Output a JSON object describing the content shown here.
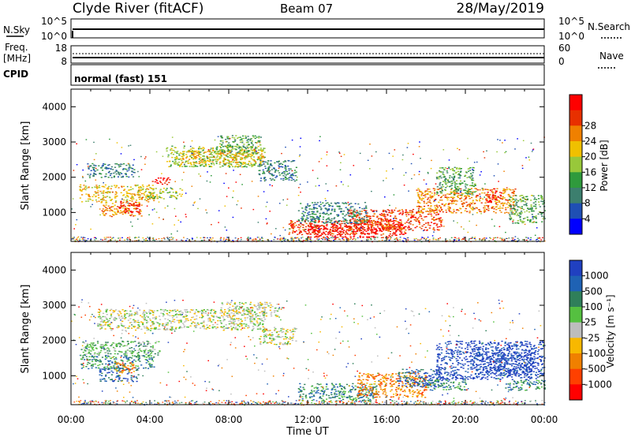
{
  "header": {
    "station": "Clyde River (fitACF)",
    "beam": "Beam 07",
    "date": "28/May/2019"
  },
  "top_panels": {
    "nsky": {
      "label": "N.Sky",
      "y_ticks": [
        "10^5",
        "10^0"
      ],
      "right_ticks": [
        "10^5",
        "10^0"
      ],
      "right_label": "N.Search"
    },
    "freq": {
      "label_line1": "Freq.",
      "label_line2": "[MHz]",
      "y_ticks": [
        "18",
        "8"
      ],
      "right_ticks": [
        "60",
        "0"
      ],
      "right_label": "Nave"
    },
    "cpid": {
      "label": "CPID",
      "mode_text": "normal (fast) 151"
    }
  },
  "chart_data": [
    {
      "type": "heatmap",
      "name": "power",
      "ylabel": "Slant Range [km]",
      "xlabel": "Time UT",
      "ylim": [
        180,
        4500
      ],
      "y_ticks": [
        1000,
        2000,
        3000,
        4000
      ],
      "x_ticks": [
        "00:00",
        "04:00",
        "08:00",
        "12:00",
        "16:00",
        "20:00",
        "00:00"
      ],
      "colorbar": {
        "label": "Power [dB]",
        "ticks": [
          "4",
          "8",
          "12",
          "16",
          "20",
          "24",
          "28"
        ],
        "colors": [
          "#0000ff",
          "#1f4fb4",
          "#3c7f6e",
          "#2f9a3c",
          "#98c83a",
          "#f0c000",
          "#f08000",
          "#e83000",
          "#ff0000"
        ]
      },
      "regions": [
        {
          "t0": 0.4,
          "t1": 4.2,
          "r0": 1300,
          "r1": 1800,
          "level": 5
        },
        {
          "t0": 1.5,
          "t1": 3.6,
          "r0": 900,
          "r1": 1300,
          "level": 6
        },
        {
          "t0": 2.4,
          "t1": 3.5,
          "r0": 1000,
          "r1": 1350,
          "level": 8
        },
        {
          "t0": 4.1,
          "t1": 5.0,
          "r0": 1800,
          "r1": 2000,
          "level": 8
        },
        {
          "t0": 3.8,
          "t1": 5.6,
          "r0": 1400,
          "r1": 1700,
          "level": 4
        },
        {
          "t0": 0.8,
          "t1": 3.2,
          "r0": 2000,
          "r1": 2400,
          "level": 2
        },
        {
          "t0": 4.8,
          "t1": 9.8,
          "r0": 2300,
          "r1": 2900,
          "level": 4
        },
        {
          "t0": 5.5,
          "t1": 9.8,
          "r0": 2400,
          "r1": 2800,
          "level": 5
        },
        {
          "t0": 7.5,
          "t1": 9.6,
          "r0": 2700,
          "r1": 3200,
          "level": 3
        },
        {
          "t0": 9.5,
          "t1": 11.4,
          "r0": 1900,
          "r1": 2500,
          "level": 2
        },
        {
          "t0": 11.0,
          "t1": 17.0,
          "r0": 380,
          "r1": 800,
          "level": 7
        },
        {
          "t0": 12.0,
          "t1": 16.8,
          "r0": 300,
          "r1": 700,
          "level": 8
        },
        {
          "t0": 14.0,
          "t1": 18.8,
          "r0": 500,
          "r1": 1100,
          "level": 7
        },
        {
          "t0": 11.5,
          "t1": 15.0,
          "r0": 700,
          "r1": 1300,
          "level": 2
        },
        {
          "t0": 17.5,
          "t1": 22.5,
          "r0": 1000,
          "r1": 1700,
          "level": 6
        },
        {
          "t0": 18.5,
          "t1": 20.5,
          "r0": 1500,
          "r1": 2300,
          "level": 3
        },
        {
          "t0": 21.0,
          "t1": 21.8,
          "r0": 1300,
          "r1": 1700,
          "level": 8
        },
        {
          "t0": 22.2,
          "t1": 24.0,
          "r0": 700,
          "r1": 1500,
          "level": 3
        }
      ]
    },
    {
      "type": "heatmap",
      "name": "velocity",
      "ylabel": "Slant Range [km]",
      "xlabel": "Time UT",
      "ylim": [
        180,
        4500
      ],
      "y_ticks": [
        1000,
        2000,
        3000,
        4000
      ],
      "x_ticks": [
        "00:00",
        "04:00",
        "08:00",
        "12:00",
        "16:00",
        "20:00",
        "00:00"
      ],
      "colorbar": {
        "label": "Velocity [m s⁻¹]",
        "ticks": [
          "1000",
          "500",
          "100",
          "25",
          "-25",
          "-100",
          "-500",
          "-1000"
        ],
        "colors": [
          "#2040c0",
          "#1f62b4",
          "#2f7f5a",
          "#55c040",
          "#bdbdbd",
          "#f8b800",
          "#f08000",
          "#ff4000",
          "#ff0000"
        ]
      },
      "regions": [
        {
          "t0": 1.3,
          "t1": 9.8,
          "r0": 2300,
          "r1": 2900,
          "level": 4
        },
        {
          "t0": 7.5,
          "t1": 10.5,
          "r0": 2700,
          "r1": 3100,
          "level": 4
        },
        {
          "t0": 9.5,
          "t1": 11.4,
          "r0": 1900,
          "r1": 2400,
          "level": 4
        },
        {
          "t0": 0.4,
          "t1": 4.2,
          "r0": 1200,
          "r1": 1600,
          "level": 2
        },
        {
          "t0": 1.4,
          "t1": 3.4,
          "r0": 850,
          "r1": 1250,
          "level": 1
        },
        {
          "t0": 2.2,
          "t1": 3.2,
          "r0": 1100,
          "r1": 1400,
          "level": 6
        },
        {
          "t0": 0.5,
          "t1": 4.5,
          "r0": 1600,
          "r1": 2000,
          "level": 3
        },
        {
          "t0": 11.5,
          "t1": 15.5,
          "r0": 300,
          "r1": 800,
          "level": 2
        },
        {
          "t0": 14.5,
          "t1": 18.0,
          "r0": 400,
          "r1": 1100,
          "level": 6
        },
        {
          "t0": 16.5,
          "t1": 18.8,
          "r0": 700,
          "r1": 1200,
          "level": 1
        },
        {
          "t0": 18.5,
          "t1": 24.0,
          "r0": 900,
          "r1": 2000,
          "level": 0
        },
        {
          "t0": 20.5,
          "t1": 23.5,
          "r0": 1000,
          "r1": 1700,
          "level": 0
        },
        {
          "t0": 18.0,
          "t1": 20.0,
          "r0": 600,
          "r1": 900,
          "level": 2
        },
        {
          "t0": 22.0,
          "t1": 24.0,
          "r0": 600,
          "r1": 900,
          "level": 2
        }
      ]
    }
  ]
}
